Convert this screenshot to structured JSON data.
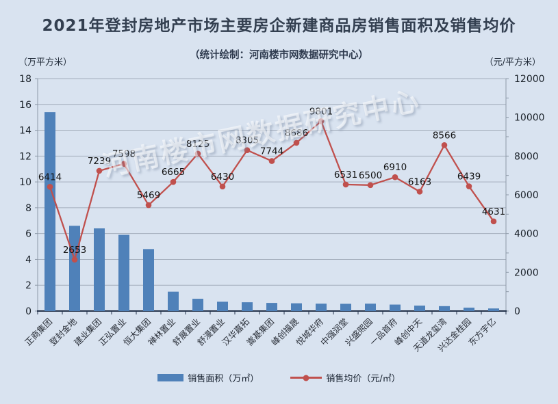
{
  "header": {
    "title": "2021年登封房地产市场主要房企新建商品房销售面积及销售均价",
    "subtitle": "（统计绘制：河南楼市网数据研究中心）"
  },
  "watermark": "河南楼市网数据研究中心",
  "axes": {
    "left_unit": "（万平方米）",
    "right_unit": "（元/平方米）"
  },
  "legend": [
    {
      "label": "销售面积（万㎡）",
      "type": "bar",
      "color": "#4f81b9"
    },
    {
      "label": "销售均价（元/㎡）",
      "type": "line",
      "color": "#c0504d"
    }
  ],
  "colors": {
    "background": "#d9e3f0",
    "bar": "#4f81b9",
    "line": "#c0504d",
    "grid": "#a3adbb",
    "axis": "#8d99a8",
    "baseline": "#23324a",
    "tick_label": "#1a2129",
    "point_label": "#111111",
    "category_label": "#2a2f38"
  },
  "chart_data": {
    "type": "combo",
    "categories": [
      "正商集团",
      "登封金地",
      "建业集团",
      "正弘置业",
      "恒大集团",
      "禅林置业",
      "舒展置业",
      "舒漫置业",
      "汉华嘉拓",
      "嵩基集团",
      "峰创福晟",
      "悦城华府",
      "中强润堂",
      "兴盛熙园",
      "一品首府",
      "峰创中天",
      "天道龙玺湾",
      "兴达金桂园",
      "东方宇亿"
    ],
    "series": [
      {
        "name": "销售面积（万㎡）",
        "type": "bar",
        "axis": "left",
        "values": [
          15.4,
          6.6,
          6.4,
          5.9,
          4.8,
          1.5,
          0.95,
          0.72,
          0.68,
          0.63,
          0.6,
          0.57,
          0.56,
          0.57,
          0.5,
          0.42,
          0.38,
          0.26,
          0.2
        ]
      },
      {
        "name": "销售均价（元/㎡）",
        "type": "line",
        "axis": "right",
        "values": [
          6414,
          2653,
          7239,
          7598,
          5469,
          6665,
          8125,
          6430,
          8305,
          7744,
          8686,
          9801,
          6531,
          6500,
          6910,
          6163,
          8566,
          6439,
          4631
        ],
        "show_labels": true
      }
    ],
    "left_axis": {
      "label": "（万平方米）",
      "min": 0,
      "max": 18,
      "step": 2
    },
    "right_axis": {
      "label": "（元/平方米）",
      "min": 0,
      "max": 12000,
      "label_step": 2000,
      "minor_step": 1000
    },
    "grid": true,
    "legend_position": "bottom",
    "title": "2021年登封房地产市场主要房企新建商品房销售面积及销售均价",
    "subtitle": "（统计绘制：河南楼市网数据研究中心）"
  }
}
